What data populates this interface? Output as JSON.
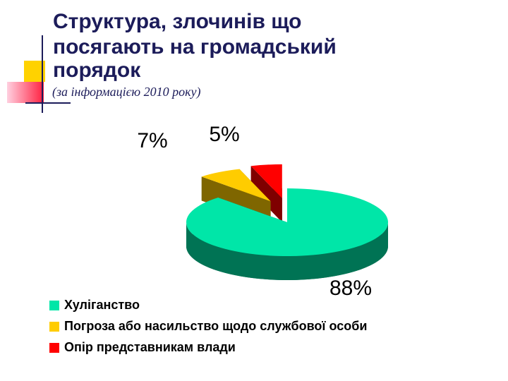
{
  "chart_data": {
    "type": "pie",
    "title": [
      "Структура, злочинів що",
      "посягають на громадський",
      "порядок"
    ],
    "subtitle": "(за інформацією 2010 року)",
    "categories": [
      "Хуліганство",
      "Погроза або насильство щодо службової особи",
      "Опір представникам влади"
    ],
    "values": [
      88,
      7,
      5
    ],
    "value_labels": [
      "88%",
      "7%",
      "5%"
    ],
    "colors": [
      "#00e6a8",
      "#ffcc00",
      "#ff0000"
    ],
    "legend": "bottom-left"
  }
}
